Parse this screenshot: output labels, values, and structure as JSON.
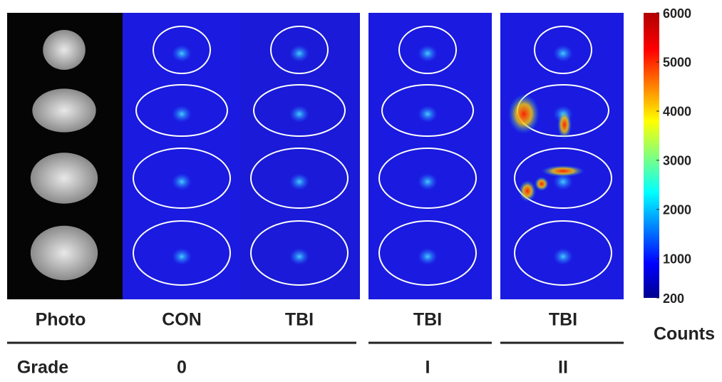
{
  "columns": [
    "Photo",
    "CON",
    "TBI",
    "TBI",
    "TBI"
  ],
  "grade": {
    "label": "Grade",
    "items": [
      "0",
      "I",
      "II"
    ]
  },
  "colorbar": {
    "title": "Counts",
    "lim": [
      200,
      6000
    ],
    "ticks": [
      200,
      1000,
      2000,
      3000,
      4000,
      5000,
      6000
    ]
  }
}
